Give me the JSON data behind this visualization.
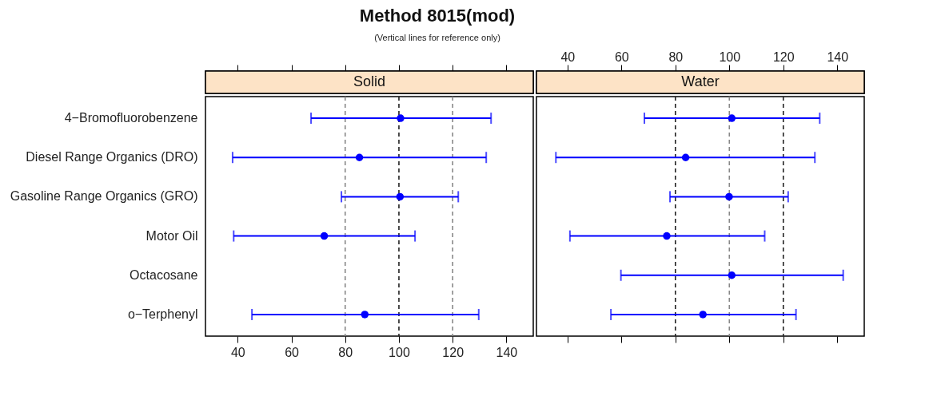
{
  "chart_data": [
    {
      "type": "scatter",
      "title": "Method 8015(mod)",
      "subtitle": "(Vertical lines for reference only)",
      "annotations": [
        "Solid"
      ],
      "orientation": "horizontal",
      "marker": "circle",
      "color": "#0000ff",
      "categories": [
        "4−Bromofluorobenzene",
        "Diesel Range Organics (DRO)",
        "Gasoline Range Organics (GRO)",
        "Motor Oil",
        "Octacosane",
        "o−Terphenyl"
      ],
      "values": [
        100.6,
        85.3,
        100.4,
        72.2,
        null,
        87.3
      ],
      "errors": [
        [
          67.3,
          134.3
        ],
        [
          38.1,
          132.5
        ],
        [
          78.6,
          122.1
        ],
        [
          38.5,
          106.0
        ],
        null,
        [
          45.3,
          129.7
        ]
      ],
      "xlim": [
        28,
        150
      ],
      "xticks": [
        40,
        60,
        80,
        100,
        120,
        140
      ],
      "ref_lines": [
        {
          "axis": "x",
          "value": 80,
          "color": "#888888",
          "line_style": "dashed"
        },
        {
          "axis": "x",
          "value": 100,
          "color": "#222222",
          "line_style": "dashed"
        },
        {
          "axis": "x",
          "value": 120,
          "color": "#888888",
          "line_style": "dashed"
        }
      ]
    },
    {
      "type": "scatter",
      "annotations": [
        "Water"
      ],
      "orientation": "horizontal",
      "marker": "circle",
      "color": "#0000ff",
      "tick_labels": "x",
      "categories": [
        null,
        null,
        null,
        null,
        null,
        null
      ],
      "values": [
        100.9,
        83.8,
        99.9,
        76.8,
        100.9,
        90.2
      ],
      "errors": [
        [
          68.5,
          133.5
        ],
        [
          35.7,
          131.7
        ],
        [
          78.0,
          121.8
        ],
        [
          40.9,
          113.1
        ],
        [
          59.8,
          142.2
        ],
        [
          56.1,
          124.7
        ]
      ],
      "xlim": [
        28.5,
        150
      ],
      "xticks": [
        40,
        60,
        80,
        100,
        120,
        140
      ],
      "ref_lines": [
        {
          "axis": "x",
          "value": 80,
          "color": "#222222",
          "line_style": "dashed"
        },
        {
          "axis": "x",
          "value": 100,
          "color": "#888888",
          "line_style": "dashed"
        },
        {
          "axis": "x",
          "value": 120,
          "color": "#222222",
          "line_style": "dashed"
        }
      ]
    }
  ]
}
